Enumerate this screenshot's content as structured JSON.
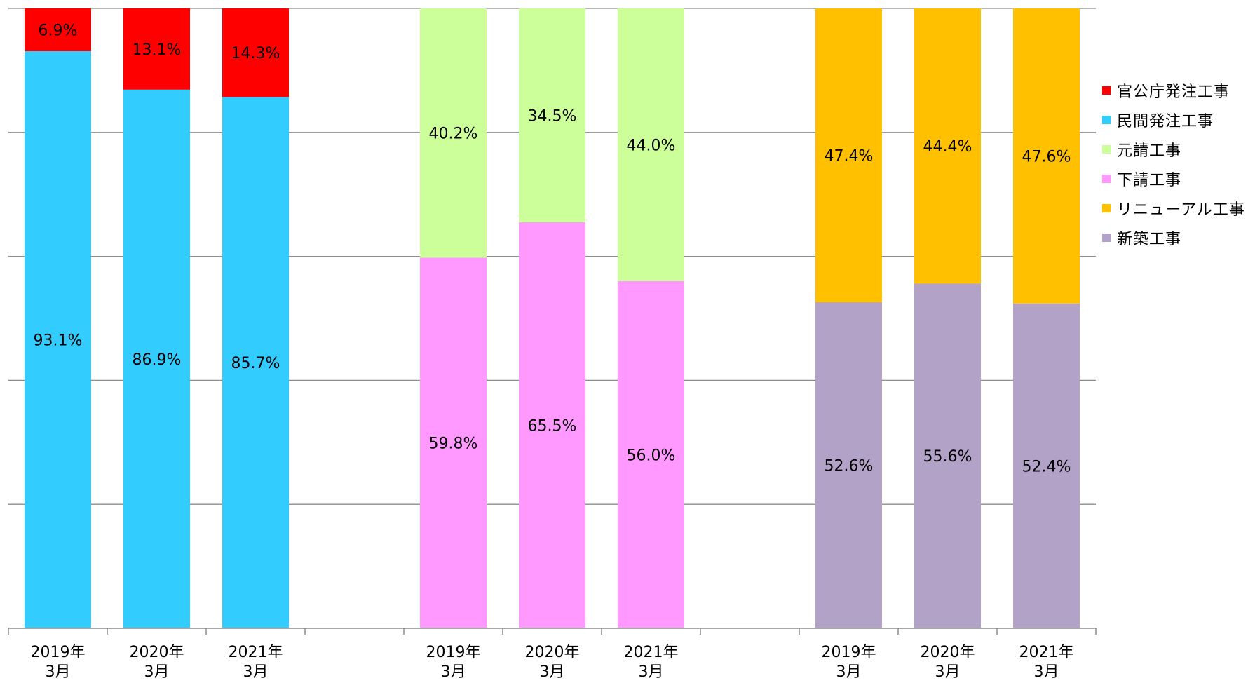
{
  "chart_data": {
    "type": "bar",
    "stacked": true,
    "normalized_100": true,
    "ylim": [
      0,
      100
    ],
    "grid": true,
    "legend_position": "right",
    "categories": [
      "2019年\n3月",
      "2020年\n3月",
      "2021年\n3月",
      "",
      "2019年\n3月",
      "2020年\n3月",
      "2021年\n3月",
      "",
      "2019年\n3月",
      "2020年\n3月",
      "2021年\n3月"
    ],
    "series": [
      {
        "name": "新築工事",
        "color": "#B2A2C7",
        "values": [
          null,
          null,
          null,
          null,
          null,
          null,
          null,
          null,
          52.6,
          55.6,
          52.4
        ],
        "labels": [
          "",
          "",
          "",
          "",
          "",
          "",
          "",
          "",
          "52.6%",
          "55.6%",
          "52.4%"
        ]
      },
      {
        "name": "リニューアル工事",
        "color": "#FFC000",
        "values": [
          null,
          null,
          null,
          null,
          null,
          null,
          null,
          null,
          47.4,
          44.4,
          47.6
        ],
        "labels": [
          "",
          "",
          "",
          "",
          "",
          "",
          "",
          "",
          "47.4%",
          "44.4%",
          "47.6%"
        ]
      },
      {
        "name": "下請工事",
        "color": "#FF99FF",
        "values": [
          null,
          null,
          null,
          null,
          59.8,
          65.5,
          56.0,
          null,
          null,
          null,
          null
        ],
        "labels": [
          "",
          "",
          "",
          "",
          "59.8%",
          "65.5%",
          "56.0%",
          "",
          "",
          "",
          ""
        ]
      },
      {
        "name": "元請工事",
        "color": "#CCFF99",
        "values": [
          null,
          null,
          null,
          null,
          40.2,
          34.5,
          44.0,
          null,
          null,
          null,
          null
        ],
        "labels": [
          "",
          "",
          "",
          "",
          "40.2%",
          "34.5%",
          "44.0%",
          "",
          "",
          "",
          ""
        ]
      },
      {
        "name": "民間発注工事",
        "color": "#33CCFF",
        "values": [
          93.1,
          86.9,
          85.7,
          null,
          null,
          null,
          null,
          null,
          null,
          null,
          null
        ],
        "labels": [
          "93.1%",
          "86.9%",
          "85.7%",
          "",
          "",
          "",
          "",
          "",
          "",
          "",
          ""
        ]
      },
      {
        "name": "官公庁発注工事",
        "color": "#FF0000",
        "values": [
          6.9,
          13.1,
          14.3,
          null,
          null,
          null,
          null,
          null,
          null,
          null,
          null
        ],
        "labels": [
          "6.9%",
          "13.1%",
          "14.3%",
          "",
          "",
          "",
          "",
          "",
          "",
          "",
          ""
        ]
      }
    ],
    "legend_order": [
      "官公庁発注工事",
      "民間発注工事",
      "元請工事",
      "下請工事",
      "リニューアル工事",
      "新築工事"
    ]
  }
}
